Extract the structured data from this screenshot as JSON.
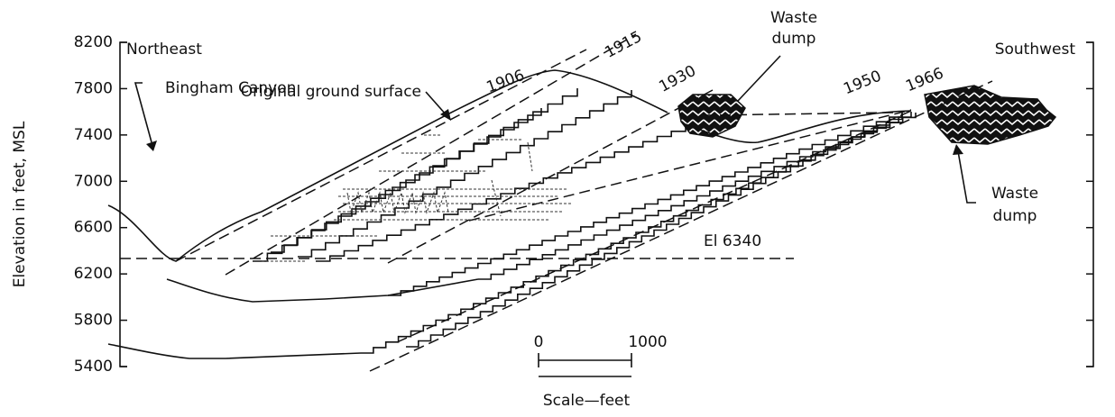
{
  "axis": {
    "label": "Elevation in feet, MSL",
    "range": [
      5400,
      8200
    ],
    "ticks": [
      8200,
      7800,
      7400,
      7000,
      6600,
      6200,
      5800,
      5400
    ]
  },
  "labels": {
    "northeast": "Northeast",
    "southwest": "Southwest",
    "bingham_canyon": "Bingham Canyon",
    "original_ground": "Original ground surface",
    "elevation_line": "El 6340"
  },
  "years": [
    "1906",
    "1915",
    "1930",
    "1950",
    "1966"
  ],
  "waste_dump_top": [
    "Waste",
    "dump"
  ],
  "waste_dump_right": [
    "Waste",
    "dump"
  ],
  "scale": {
    "start": "0",
    "end": "1000",
    "caption": "Scale—feet"
  }
}
